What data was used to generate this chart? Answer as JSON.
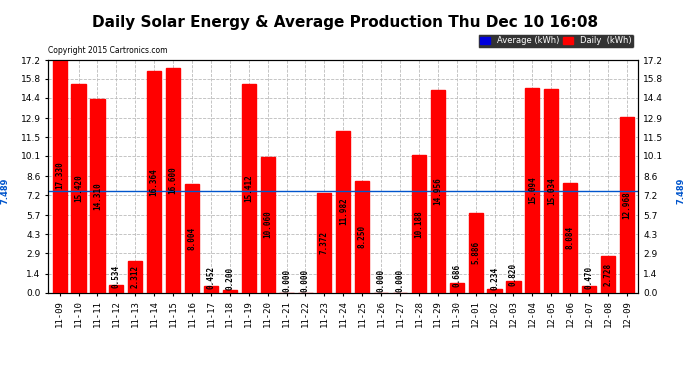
{
  "title": "Daily Solar Energy & Average Production Thu Dec 10 16:08",
  "copyright": "Copyright 2015 Cartronics.com",
  "categories": [
    "11-09",
    "11-10",
    "11-11",
    "11-12",
    "11-13",
    "11-14",
    "11-15",
    "11-16",
    "11-17",
    "11-18",
    "11-19",
    "11-20",
    "11-21",
    "11-22",
    "11-23",
    "11-24",
    "11-25",
    "11-26",
    "11-27",
    "11-28",
    "11-29",
    "11-30",
    "12-01",
    "12-02",
    "12-03",
    "12-04",
    "12-05",
    "12-06",
    "12-07",
    "12-08",
    "12-09"
  ],
  "values": [
    17.33,
    15.42,
    14.31,
    0.534,
    2.312,
    16.364,
    16.6,
    8.004,
    0.452,
    0.2,
    15.412,
    10.06,
    0.0,
    0.0,
    7.372,
    11.982,
    8.25,
    0.0,
    0.0,
    10.188,
    14.956,
    0.686,
    5.886,
    0.234,
    0.82,
    15.094,
    15.034,
    8.084,
    0.47,
    2.728,
    12.968
  ],
  "average": 7.489,
  "bar_color": "#ff0000",
  "avg_line_color": "#0055cc",
  "background_color": "#ffffff",
  "plot_bg_color": "#ffffff",
  "grid_color": "#bbbbbb",
  "ylim": [
    0.0,
    17.2
  ],
  "yticks": [
    0.0,
    1.4,
    2.9,
    4.3,
    5.7,
    7.2,
    8.6,
    10.1,
    11.5,
    12.9,
    14.4,
    15.8,
    17.2
  ],
  "avg_label": "7.489",
  "legend_avg_color": "#0000dd",
  "legend_daily_color": "#ff0000",
  "legend_avg_text": "Average (kWh)",
  "legend_daily_text": "Daily  (kWh)",
  "title_fontsize": 11,
  "tick_fontsize": 6.5,
  "bar_value_fontsize": 5.5,
  "avg_label_fontsize": 6
}
